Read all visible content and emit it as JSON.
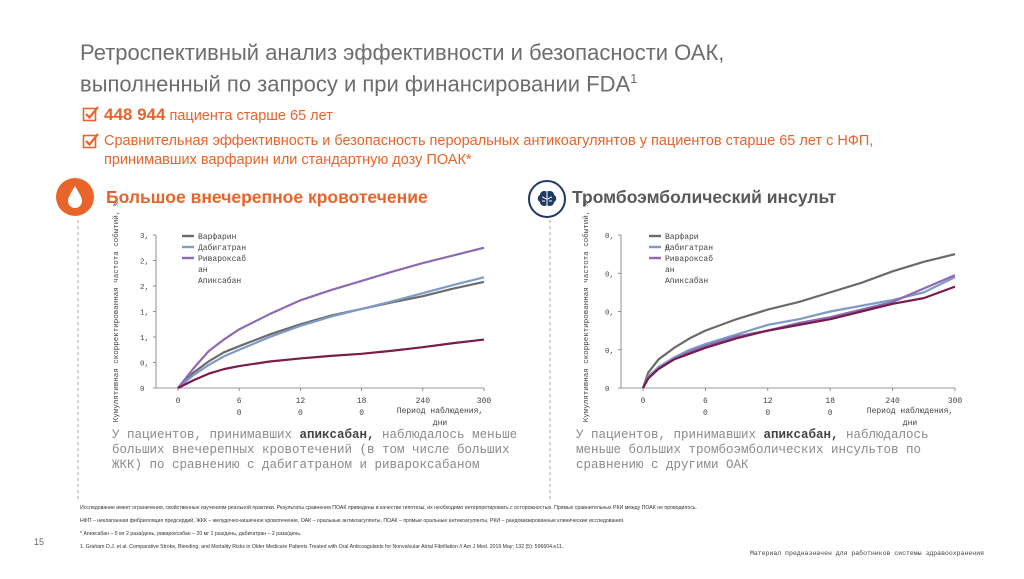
{
  "title": {
    "line1": "Ретроспективный анализ эффективности и безопасности ОАК,",
    "line2": "выполненный по запросу и при финансировании FDA",
    "sup": "1"
  },
  "bullets": [
    {
      "strong": "448 944",
      "text": " пациента старше 65 лет"
    },
    {
      "strong": "",
      "text": "Сравнительная эффективность и безопасность пероральных антикоагулянтов у пациентов старше 65 лет с НФП, принимавших варфарин или стандартную дозу ПОАК*"
    }
  ],
  "sections": {
    "left_title": "Большое внечерепное кровотечение",
    "right_title": "Тромбоэмболический инсульт"
  },
  "colors": {
    "accent": "#e8642a",
    "warfarin": "#6b6b6b",
    "dabigatran": "#7d9bc6",
    "rivaroxaban": "#8d6bb4",
    "apixaban": "#7a1b4c",
    "brain_icon": "#1f3864"
  },
  "icons": {
    "left": "blood-drop-icon",
    "right": "brain-icon",
    "bullet": "checkmark-icon"
  },
  "chart_data": [
    {
      "type": "line",
      "ylabel": "Кумулятивная скорректированная частота событий, %",
      "xlabel": "Период наблюдения, дни",
      "x_ticks": [
        "0",
        "6\n0",
        "12\n0",
        "18\n0",
        "240",
        "300"
      ],
      "y_ticks": [
        "0",
        "0,",
        "1,",
        "1,",
        "2,",
        "2,",
        "3,"
      ],
      "xlim": [
        0,
        300
      ],
      "ylim": [
        0,
        3
      ],
      "legend_position": "top-left",
      "legend": [
        "Варфарин",
        "Дабигатран",
        "Ривароксаб ан",
        "Апиксабан"
      ],
      "series": [
        {
          "name": "Варфарин",
          "x": [
            0,
            15,
            30,
            45,
            60,
            90,
            120,
            150,
            180,
            210,
            240,
            270,
            300
          ],
          "y": [
            0,
            0.3,
            0.52,
            0.7,
            0.82,
            1.05,
            1.25,
            1.42,
            1.55,
            1.68,
            1.8,
            1.95,
            2.08
          ]
        },
        {
          "name": "Дабигатран",
          "x": [
            0,
            15,
            30,
            45,
            60,
            90,
            120,
            150,
            180,
            210,
            240,
            270,
            300
          ],
          "y": [
            0,
            0.25,
            0.45,
            0.62,
            0.75,
            1.0,
            1.22,
            1.4,
            1.55,
            1.7,
            1.86,
            2.02,
            2.17
          ]
        },
        {
          "name": "Ривароксаб ан",
          "x": [
            0,
            15,
            30,
            45,
            60,
            90,
            120,
            150,
            180,
            210,
            240,
            270,
            300
          ],
          "y": [
            0,
            0.38,
            0.72,
            0.95,
            1.15,
            1.45,
            1.72,
            1.92,
            2.1,
            2.28,
            2.45,
            2.6,
            2.75
          ]
        },
        {
          "name": "Апиксабан",
          "x": [
            0,
            15,
            30,
            45,
            60,
            90,
            120,
            150,
            180,
            210,
            240,
            270,
            300
          ],
          "y": [
            0,
            0.15,
            0.28,
            0.37,
            0.43,
            0.52,
            0.58,
            0.63,
            0.67,
            0.73,
            0.8,
            0.88,
            0.95
          ]
        }
      ]
    },
    {
      "type": "line",
      "ylabel": "Кумулятивная скорректированная частота событий, %",
      "xlabel": "Период наблюдения, дни",
      "x_ticks": [
        "0",
        "6\n0",
        "12\n0",
        "18\n0",
        "240",
        "300"
      ],
      "y_ticks": [
        "0",
        "0,",
        "0,",
        "0,",
        "0,"
      ],
      "xlim": [
        0,
        300
      ],
      "ylim": [
        0,
        0.8
      ],
      "legend_position": "top-left",
      "legend": [
        "Варфари н",
        "Дабигатран",
        "Ривароксаб ан",
        "Апиксабан"
      ],
      "series": [
        {
          "name": "Варфари н",
          "x": [
            0,
            5,
            15,
            30,
            45,
            60,
            90,
            120,
            150,
            180,
            210,
            240,
            270,
            300
          ],
          "y": [
            0,
            0.08,
            0.15,
            0.21,
            0.26,
            0.3,
            0.36,
            0.41,
            0.45,
            0.5,
            0.55,
            0.61,
            0.66,
            0.7
          ]
        },
        {
          "name": "Дабигатран",
          "x": [
            0,
            5,
            15,
            30,
            45,
            60,
            90,
            120,
            150,
            180,
            210,
            240,
            270,
            300
          ],
          "y": [
            0,
            0.06,
            0.11,
            0.16,
            0.2,
            0.23,
            0.28,
            0.33,
            0.36,
            0.4,
            0.43,
            0.46,
            0.5,
            0.58
          ]
        },
        {
          "name": "Ривароксаб ан",
          "x": [
            0,
            5,
            15,
            30,
            45,
            60,
            90,
            120,
            150,
            180,
            210,
            240,
            270,
            300
          ],
          "y": [
            0,
            0.05,
            0.1,
            0.15,
            0.19,
            0.22,
            0.27,
            0.3,
            0.34,
            0.37,
            0.41,
            0.45,
            0.52,
            0.59
          ]
        },
        {
          "name": "Апиксабан",
          "x": [
            0,
            5,
            15,
            30,
            45,
            60,
            90,
            120,
            150,
            180,
            210,
            240,
            270,
            300
          ],
          "y": [
            0,
            0.05,
            0.1,
            0.15,
            0.18,
            0.21,
            0.26,
            0.3,
            0.33,
            0.36,
            0.4,
            0.44,
            0.47,
            0.53
          ]
        }
      ]
    }
  ],
  "notes": {
    "left_pre": "У пациентов, принимавших ",
    "left_strong": "апиксабан,",
    "left_post": " наблюдалось меньше больших внечерепных кровотечений (в том числе больших ЖКК) по сравнению с дабигатраном и ривароксабаном",
    "right_pre": "У пациентов, принимавших ",
    "right_strong": "апиксабан,",
    "right_post": " наблюдалось меньше больших тромбоэмболических инсультов по сравнению с другими ОАК"
  },
  "footnotes": [
    "Исследование имеет ограничения, свойственные изучениям реальной практики. Результаты сравнения ПОАК приведены в качестве гипотезы, их необходимо интерпретировать с осторожностью. Прямых сравнительных РКИ между ПОАК не проводилось.",
    "НФП – неклапанная фибрилляция предсердий, ЖКК – желудочно-кишечное кровотечение, ОАК – оральные антикоагулянты, ПОАК – прямые оральные антикоагулянты, РКИ – рандомизированные клинические исследования.",
    "* Апиксабан – 5 мг 2 раза/день, ривароксабан – 20 мг 1 раз/день, дабигатран – 2 раза/день.",
    "1. Graham D.J. et al. Comparative Stroke, Bleeding, and Mortality Risks in Older Medicare Patients Treated with Oral Anticoagulants for Nonvalvular Atrial Fibrillation // Am J Med. 2019 May; 132 (5): 596604.e11."
  ],
  "page_number": "15",
  "disclaimer": "Материал предназначен для работников системы здравоохранения"
}
